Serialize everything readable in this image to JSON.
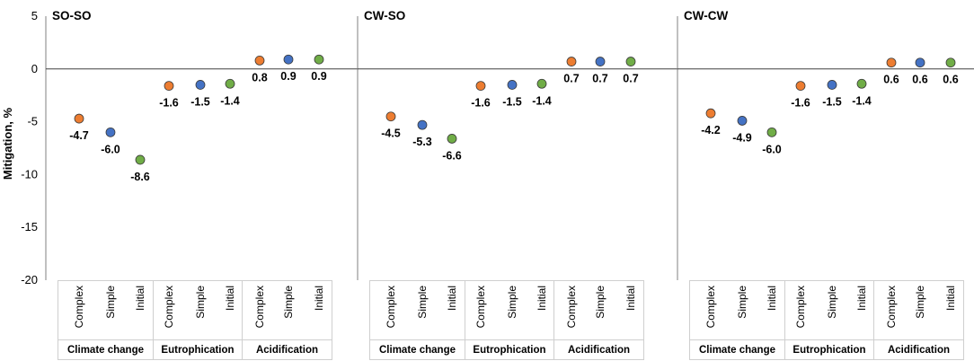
{
  "chart_data": {
    "type": "scatter",
    "ylabel": "Mitigation, %",
    "ylim": [
      -20,
      5
    ],
    "yticks": [
      5,
      0,
      -5,
      -10,
      -15,
      -20
    ],
    "group_labels": [
      "Climate change",
      "Eutrophication",
      "Acidification"
    ],
    "method_labels": [
      "Complex",
      "Simple",
      "Initial"
    ],
    "colors": {
      "Complex": "#ED7D31",
      "Simple": "#4472C4",
      "Initial": "#70AD47"
    },
    "panels": [
      {
        "title": "SO-SO",
        "values": [
          [
            -4.7,
            -6.0,
            -8.6
          ],
          [
            -1.6,
            -1.5,
            -1.4
          ],
          [
            0.8,
            0.9,
            0.9
          ]
        ],
        "labels": [
          [
            "-4.7",
            "-6.0",
            "-8.6"
          ],
          [
            "-1.6",
            "-1.5",
            "-1.4"
          ],
          [
            "0.8",
            "0.9",
            "0.9"
          ]
        ]
      },
      {
        "title": "CW-SO",
        "values": [
          [
            -4.5,
            -5.3,
            -6.6
          ],
          [
            -1.6,
            -1.5,
            -1.4
          ],
          [
            0.7,
            0.7,
            0.7
          ]
        ],
        "labels": [
          [
            "-4.5",
            "-5.3",
            "-6.6"
          ],
          [
            "-1.6",
            "-1.5",
            "-1.4"
          ],
          [
            "0.7",
            "0.7",
            "0.7"
          ]
        ]
      },
      {
        "title": "CW-CW",
        "values": [
          [
            -4.2,
            -4.9,
            -6.0
          ],
          [
            -1.6,
            -1.5,
            -1.4
          ],
          [
            0.6,
            0.6,
            0.6
          ]
        ],
        "labels": [
          [
            "-4.2",
            "-4.9",
            "-6.0"
          ],
          [
            "-1.6",
            "-1.5",
            "-1.4"
          ],
          [
            "0.6",
            "0.6",
            "0.6"
          ]
        ]
      }
    ]
  }
}
